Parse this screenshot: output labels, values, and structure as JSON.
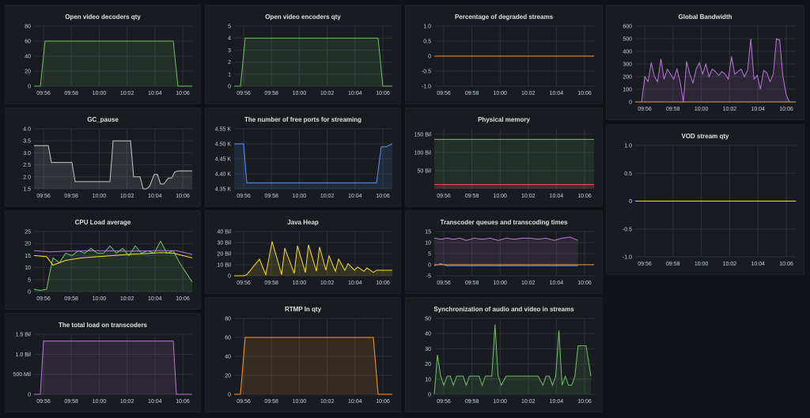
{
  "colors": {
    "green": "#73bf69",
    "yellow": "#fade2a",
    "orange": "#ff9830",
    "purple": "#b877d9",
    "blue": "#5794f2",
    "red": "#f2495c",
    "white": "#c8c8c8",
    "grid": "#2c3038"
  },
  "panels": [
    {
      "id": "decoders",
      "title": "Open video decoders qty",
      "chart_data": {
        "type": "area",
        "xticks": [
          "09:56",
          "09:58",
          "10:00",
          "10:02",
          "10:04",
          "10:06"
        ],
        "yticks": [
          "0",
          "20",
          "40",
          "60",
          "80"
        ],
        "ylim": [
          0,
          80
        ],
        "series": [
          {
            "color": "green",
            "fill": true,
            "x": [
              0,
              0.04,
              0.07,
              0.88,
              0.91,
              1
            ],
            "y": [
              0,
              0,
              60,
              60,
              0,
              0
            ]
          }
        ]
      }
    },
    {
      "id": "encoders",
      "title": "Open video encoders qty",
      "chart_data": {
        "type": "area",
        "xticks": [
          "09:56",
          "09:58",
          "10:00",
          "10:02",
          "10:04",
          "10:06"
        ],
        "yticks": [
          "0",
          "1",
          "2",
          "3",
          "4",
          "5"
        ],
        "ylim": [
          0,
          5
        ],
        "series": [
          {
            "color": "green",
            "fill": true,
            "x": [
              0,
              0.04,
              0.07,
              0.91,
              0.94,
              1
            ],
            "y": [
              0,
              0,
              4,
              4,
              0,
              0
            ]
          }
        ]
      }
    },
    {
      "id": "degraded",
      "title": "Percentage of degraded streams",
      "chart_data": {
        "type": "line",
        "xticks": [
          "09:56",
          "09:58",
          "10:00",
          "10:02",
          "10:04",
          "10:06"
        ],
        "yticks": [
          "-1.0",
          "-0.5",
          "0",
          "0.5",
          "1.0"
        ],
        "ylim": [
          -1,
          1
        ],
        "series": [
          {
            "color": "orange",
            "fill": false,
            "x": [
              0,
              1
            ],
            "y": [
              0,
              0
            ]
          }
        ]
      }
    },
    {
      "id": "bandwidth",
      "title": "Global Bandwidth",
      "chart_data": {
        "type": "area",
        "xticks": [
          "09:56",
          "09:58",
          "10:00",
          "10:02",
          "10:04",
          "10:06"
        ],
        "yticks": [
          "0",
          "100",
          "200",
          "300",
          "400",
          "500",
          "600"
        ],
        "ylim": [
          0,
          600
        ],
        "series": [
          {
            "color": "purple",
            "fill": true,
            "x": [
              0,
              0.04,
              0.06,
              0.08,
              0.1,
              0.12,
              0.14,
              0.16,
              0.18,
              0.2,
              0.22,
              0.24,
              0.26,
              0.28,
              0.3,
              0.32,
              0.34,
              0.36,
              0.38,
              0.4,
              0.42,
              0.44,
              0.46,
              0.48,
              0.5,
              0.52,
              0.54,
              0.56,
              0.58,
              0.6,
              0.62,
              0.64,
              0.66,
              0.68,
              0.7,
              0.72,
              0.74,
              0.76,
              0.78,
              0.8,
              0.82,
              0.84,
              0.86,
              0.88,
              0.9,
              0.92,
              0.94,
              0.96,
              1
            ],
            "y": [
              0,
              0,
              200,
              160,
              310,
              200,
              160,
              340,
              180,
              260,
              220,
              180,
              260,
              160,
              0,
              320,
              220,
              150,
              260,
              310,
              220,
              300,
              200,
              260,
              240,
              210,
              240,
              220,
              180,
              360,
              220,
              240,
              260,
              200,
              250,
              500,
              180,
              210,
              100,
              250,
              230,
              160,
              220,
              500,
              490,
              200,
              60,
              0,
              0
            ]
          },
          {
            "color": "orange",
            "fill": false,
            "x": [
              0,
              1
            ],
            "y": [
              0,
              0
            ]
          }
        ]
      }
    },
    {
      "id": "gcpause",
      "title": "GC_pause",
      "chart_data": {
        "type": "area",
        "xticks": [
          "09:56",
          "09:58",
          "10:00",
          "10:02",
          "10:04",
          "10:06"
        ],
        "yticks": [
          "1.5",
          "2.0",
          "2.5",
          "3.0",
          "3.5",
          "4.0"
        ],
        "ylim": [
          1.5,
          4.0
        ],
        "series": [
          {
            "color": "white",
            "fill": true,
            "x": [
              0,
              0.09,
              0.11,
              0.24,
              0.26,
              0.37,
              0.39,
              0.48,
              0.5,
              0.61,
              0.63,
              0.67,
              0.69,
              0.71,
              0.73,
              0.76,
              0.78,
              0.8,
              0.82,
              0.85,
              0.87,
              0.89,
              0.91,
              0.94,
              0.96,
              1
            ],
            "y": [
              3.3,
              3.3,
              2.6,
              2.6,
              1.8,
              1.8,
              1.8,
              1.8,
              3.5,
              3.5,
              2.0,
              2.0,
              1.5,
              1.5,
              1.6,
              2.1,
              2.1,
              1.7,
              1.7,
              1.95,
              1.95,
              2.2,
              2.25,
              2.25,
              2.25,
              2.25
            ]
          }
        ]
      }
    },
    {
      "id": "ports",
      "title": "The number of free ports for streaming",
      "chart_data": {
        "type": "area",
        "xticks": [
          "09:56",
          "09:58",
          "10:00",
          "10:02",
          "10:04",
          "10:06"
        ],
        "yticks": [
          "4.35 K",
          "4.40 K",
          "4.45 K",
          "4.50 K",
          "4.55 K"
        ],
        "ylim": [
          4350,
          4550
        ],
        "series": [
          {
            "color": "blue",
            "fill": true,
            "x": [
              0,
              0.06,
              0.08,
              0.9,
              0.93,
              0.96,
              1
            ],
            "y": [
              4500,
              4500,
              4370,
              4370,
              4490,
              4490,
              4500
            ]
          }
        ]
      }
    },
    {
      "id": "memory",
      "title": "Physical memory",
      "chart_data": {
        "type": "area",
        "xticks": [
          "09:56",
          "09:58",
          "10:00",
          "10:02",
          "10:04",
          "10:06"
        ],
        "yticks": [
          "50 Bil",
          "100 Bil",
          "150 Bil"
        ],
        "ylim": [
          0,
          165
        ],
        "series": [
          {
            "color": "green",
            "fill": true,
            "x": [
              0,
              1
            ],
            "y": [
              136,
              136
            ]
          },
          {
            "color": "red",
            "fill": true,
            "x": [
              0,
              1
            ],
            "y": [
              12,
              12
            ]
          }
        ]
      }
    },
    {
      "id": "vod",
      "title": "VOD stream qty",
      "chart_data": {
        "type": "line",
        "xticks": [
          "09:56",
          "09:58",
          "10:00",
          "10:02",
          "10:04",
          "10:06"
        ],
        "yticks": [
          "-1.0",
          "-0.5",
          "0",
          "0.5",
          "1.0"
        ],
        "ylim": [
          -1,
          1
        ],
        "series": [
          {
            "color": "yellow",
            "fill": false,
            "x": [
              0,
              1
            ],
            "y": [
              0,
              0
            ]
          }
        ]
      }
    },
    {
      "id": "cpu",
      "title": "CPU Load average",
      "chart_data": {
        "type": "area",
        "xticks": [
          "09:56",
          "09:58",
          "10:00",
          "10:02",
          "10:04",
          "10:06"
        ],
        "yticks": [
          "0",
          "5",
          "10",
          "15",
          "20",
          "25"
        ],
        "ylim": [
          0,
          25
        ],
        "series": [
          {
            "color": "green",
            "fill": true,
            "x": [
              0,
              0.04,
              0.08,
              0.1,
              0.12,
              0.16,
              0.2,
              0.24,
              0.28,
              0.32,
              0.36,
              0.4,
              0.44,
              0.48,
              0.52,
              0.56,
              0.6,
              0.64,
              0.68,
              0.72,
              0.76,
              0.8,
              0.84,
              0.88,
              0.92,
              0.96,
              1
            ],
            "y": [
              1,
              0.5,
              1,
              8,
              14,
              12,
              16,
              15,
              17,
              16,
              18,
              16,
              16,
              19,
              16,
              18,
              15,
              19,
              16,
              17,
              16,
              21,
              16,
              17,
              12,
              8,
              4
            ]
          },
          {
            "color": "yellow",
            "fill": false,
            "x": [
              0,
              0.08,
              0.12,
              0.2,
              0.3,
              0.4,
              0.5,
              0.6,
              0.7,
              0.8,
              0.88,
              0.94,
              1
            ],
            "y": [
              15,
              14.5,
              11,
              13,
              14,
              14.5,
              15,
              15.5,
              15.8,
              16.2,
              16,
              15,
              14
            ]
          },
          {
            "color": "purple",
            "fill": false,
            "x": [
              0,
              0.1,
              0.2,
              0.4,
              0.6,
              0.8,
              0.9,
              1
            ],
            "y": [
              17,
              16.5,
              16.8,
              17,
              16.8,
              17,
              17,
              15.5
            ]
          }
        ]
      }
    },
    {
      "id": "javaheap",
      "title": "Java Heap",
      "chart_data": {
        "type": "area",
        "xticks": [
          "09:56",
          "09:58",
          "10:00",
          "10:02",
          "10:04",
          "10:06"
        ],
        "yticks": [
          "0",
          "10 Bil",
          "20 Bil",
          "30 Bil",
          "40 Bil"
        ],
        "ylim": [
          0,
          40
        ],
        "series": [
          {
            "color": "yellow",
            "fill": true,
            "x": [
              0,
              0.06,
              0.08,
              0.16,
              0.2,
              0.24,
              0.3,
              0.32,
              0.38,
              0.4,
              0.45,
              0.47,
              0.52,
              0.54,
              0.58,
              0.6,
              0.64,
              0.66,
              0.7,
              0.72,
              0.76,
              0.78,
              0.82,
              0.84,
              0.88,
              0.9,
              1
            ],
            "y": [
              0,
              0,
              1,
              15,
              1,
              31,
              1,
              25,
              2,
              27,
              3,
              28,
              4,
              26,
              5,
              18,
              4,
              15,
              5,
              11,
              5,
              8,
              4,
              7,
              3,
              5,
              5
            ]
          }
        ]
      }
    },
    {
      "id": "transcoder",
      "title": "Transcoder queues and transcoding times",
      "chart_data": {
        "type": "area",
        "xticks": [
          "09:56",
          "09:58",
          "10:00",
          "10:02",
          "10:04",
          "10:06"
        ],
        "yticks": [
          "-5",
          "0",
          "5",
          "10",
          "15"
        ],
        "ylim": [
          -5,
          15
        ],
        "series": [
          {
            "color": "purple",
            "fill": true,
            "x": [
              0,
              0.04,
              0.08,
              0.12,
              0.16,
              0.2,
              0.25,
              0.3,
              0.35,
              0.4,
              0.45,
              0.5,
              0.55,
              0.6,
              0.65,
              0.7,
              0.75,
              0.8,
              0.85,
              0.9
            ],
            "y": [
              12,
              11.5,
              12,
              11.5,
              12,
              11,
              12,
              11.5,
              12,
              11,
              12,
              11.5,
              12,
              12,
              11.5,
              12,
              11,
              12,
              12.5,
              11
            ]
          },
          {
            "color": "blue",
            "fill": false,
            "x": [
              0,
              0.04,
              0.08,
              0.9
            ],
            "y": [
              -0.5,
              0.5,
              -0.5,
              -0.5
            ]
          },
          {
            "color": "orange",
            "fill": false,
            "x": [
              0,
              1
            ],
            "y": [
              0,
              0
            ]
          }
        ]
      }
    },
    {
      "id": "totalload",
      "title": "The total load on transcoders",
      "chart_data": {
        "type": "area",
        "xticks": [
          "09:56",
          "09:58",
          "10:00",
          "10:02",
          "10:04",
          "10:06"
        ],
        "yticks": [
          "0",
          "500 Mil",
          "1.0 Bil",
          "1.5 Bil"
        ],
        "ylim": [
          0,
          1.5
        ],
        "series": [
          {
            "color": "purple",
            "fill": true,
            "x": [
              0,
              0.04,
              0.06,
              0.88,
              0.9,
              1
            ],
            "y": [
              0,
              0,
              1.33,
              1.33,
              0,
              0
            ]
          }
        ]
      }
    },
    {
      "id": "rtmp",
      "title": "RTMP In qty",
      "chart_data": {
        "type": "area",
        "xticks": [
          "09:56",
          "09:58",
          "10:00",
          "10:02",
          "10:04",
          "10:06"
        ],
        "yticks": [
          "0",
          "20",
          "40",
          "60",
          "80"
        ],
        "ylim": [
          0,
          80
        ],
        "series": [
          {
            "color": "orange",
            "fill": true,
            "x": [
              0,
              0.04,
              0.07,
              0.88,
              0.91,
              1
            ],
            "y": [
              0,
              0,
              60,
              60,
              0,
              0
            ]
          }
        ]
      }
    },
    {
      "id": "sync",
      "title": "Synchronization of audio and video in streams",
      "chart_data": {
        "type": "area",
        "xticks": [
          "09:56",
          "09:58",
          "10:00",
          "10:02",
          "10:04",
          "10:06"
        ],
        "yticks": [
          "0",
          "10",
          "20",
          "30",
          "40",
          "50"
        ],
        "ylim": [
          0,
          50
        ],
        "series": [
          {
            "color": "green",
            "fill": true,
            "x": [
              0,
              0.02,
              0.04,
              0.06,
              0.08,
              0.1,
              0.12,
              0.14,
              0.16,
              0.18,
              0.2,
              0.22,
              0.24,
              0.26,
              0.28,
              0.3,
              0.32,
              0.34,
              0.36,
              0.38,
              0.4,
              0.42,
              0.45,
              0.5,
              0.55,
              0.6,
              0.65,
              0.68,
              0.7,
              0.72,
              0.74,
              0.76,
              0.78,
              0.8,
              0.82,
              0.84,
              0.86,
              0.88,
              0.9,
              0.92,
              0.95,
              0.98
            ],
            "y": [
              0,
              26,
              12,
              6,
              12,
              12,
              6,
              12,
              12,
              12,
              6,
              12,
              12,
              12,
              12,
              6,
              12,
              12,
              12,
              46,
              12,
              6,
              12,
              12,
              12,
              12,
              12,
              6,
              12,
              12,
              6,
              12,
              42,
              6,
              12,
              6,
              6,
              12,
              32,
              32,
              32,
              12
            ]
          }
        ]
      }
    }
  ]
}
